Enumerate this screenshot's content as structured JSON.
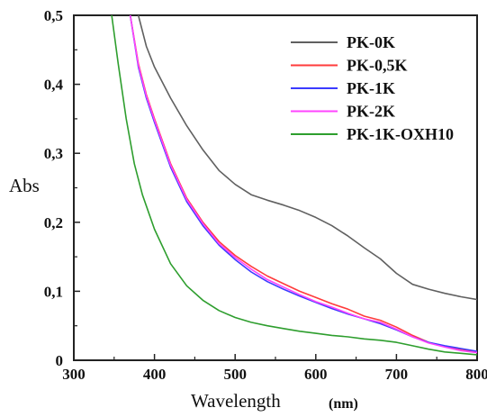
{
  "chart_data": {
    "type": "line",
    "xlabel": "Wavelength",
    "xunit": "(nm)",
    "ylabel": "Abs",
    "xlim": [
      300,
      800
    ],
    "ylim": [
      0,
      0.5
    ],
    "xticks": [
      {
        "value": 300,
        "label": "300"
      },
      {
        "value": 400,
        "label": "400"
      },
      {
        "value": 500,
        "label": "500"
      },
      {
        "value": 600,
        "label": "600"
      },
      {
        "value": 700,
        "label": "700"
      },
      {
        "value": 800,
        "label": "800"
      }
    ],
    "yticks": [
      {
        "value": 0,
        "label": "0"
      },
      {
        "value": 0.1,
        "label": "0,1"
      },
      {
        "value": 0.2,
        "label": "0,2"
      },
      {
        "value": 0.3,
        "label": "0,3"
      },
      {
        "value": 0.4,
        "label": "0,4"
      },
      {
        "value": 0.5,
        "label": "0,5"
      }
    ],
    "grid": false,
    "legend_position": "top-right",
    "series": [
      {
        "name": "PK-0K",
        "color": "#606060",
        "x": [
          380,
          390,
          400,
          420,
          440,
          460,
          480,
          500,
          520,
          540,
          560,
          580,
          600,
          620,
          640,
          660,
          680,
          700,
          720,
          740,
          760,
          780,
          800
        ],
        "y": [
          0.5,
          0.455,
          0.425,
          0.38,
          0.34,
          0.305,
          0.275,
          0.255,
          0.24,
          0.232,
          0.225,
          0.217,
          0.207,
          0.195,
          0.18,
          0.163,
          0.147,
          0.126,
          0.11,
          0.103,
          0.097,
          0.092,
          0.088
        ]
      },
      {
        "name": "PK-0,5K",
        "color": "#ff3b3b",
        "x": [
          370,
          380,
          390,
          400,
          420,
          440,
          460,
          480,
          500,
          520,
          540,
          560,
          580,
          600,
          620,
          640,
          660,
          680,
          700,
          720,
          740,
          760,
          780,
          800
        ],
        "y": [
          0.5,
          0.43,
          0.385,
          0.35,
          0.285,
          0.235,
          0.2,
          0.172,
          0.152,
          0.136,
          0.122,
          0.111,
          0.1,
          0.091,
          0.082,
          0.074,
          0.064,
          0.058,
          0.048,
          0.036,
          0.026,
          0.02,
          0.016,
          0.012
        ]
      },
      {
        "name": "PK-1K",
        "color": "#3b3bff",
        "x": [
          370,
          380,
          390,
          400,
          420,
          440,
          460,
          480,
          500,
          520,
          540,
          560,
          580,
          600,
          620,
          640,
          660,
          680,
          700,
          720,
          740,
          760,
          780,
          800
        ],
        "y": [
          0.5,
          0.425,
          0.38,
          0.345,
          0.28,
          0.23,
          0.195,
          0.167,
          0.146,
          0.128,
          0.114,
          0.103,
          0.093,
          0.084,
          0.075,
          0.067,
          0.06,
          0.053,
          0.044,
          0.034,
          0.026,
          0.021,
          0.017,
          0.013
        ]
      },
      {
        "name": "PK-2K",
        "color": "#ff44ff",
        "x": [
          370,
          380,
          390,
          400,
          420,
          440,
          460,
          480,
          500,
          520,
          540,
          560,
          580,
          600,
          620,
          640,
          660,
          680,
          700,
          720,
          740,
          760,
          780,
          800
        ],
        "y": [
          0.5,
          0.428,
          0.383,
          0.348,
          0.283,
          0.233,
          0.198,
          0.169,
          0.149,
          0.132,
          0.117,
          0.106,
          0.095,
          0.085,
          0.077,
          0.068,
          0.06,
          0.055,
          0.045,
          0.034,
          0.025,
          0.019,
          0.014,
          0.011
        ]
      },
      {
        "name": "PK-1K-OXH10",
        "color": "#2e9e2e",
        "x": [
          347,
          355,
          365,
          375,
          385,
          400,
          420,
          440,
          460,
          480,
          500,
          520,
          540,
          560,
          580,
          600,
          620,
          640,
          660,
          680,
          700,
          720,
          740,
          760,
          780,
          800
        ],
        "y": [
          0.5,
          0.43,
          0.35,
          0.285,
          0.24,
          0.19,
          0.14,
          0.108,
          0.087,
          0.072,
          0.062,
          0.055,
          0.05,
          0.046,
          0.042,
          0.039,
          0.036,
          0.034,
          0.031,
          0.029,
          0.026,
          0.021,
          0.016,
          0.012,
          0.01,
          0.008
        ]
      }
    ]
  }
}
